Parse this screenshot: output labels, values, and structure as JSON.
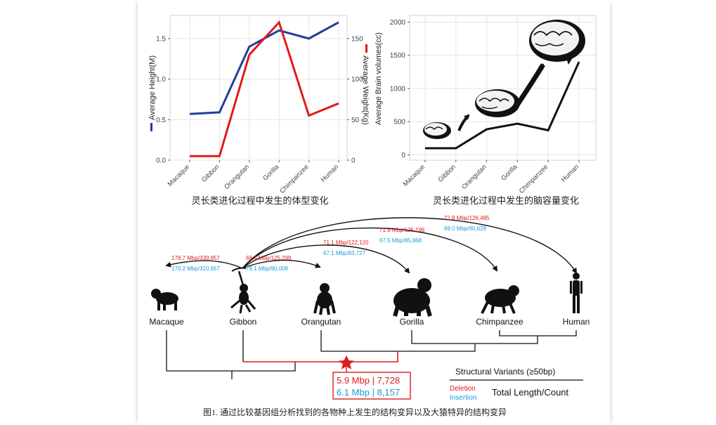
{
  "colors": {
    "height_line": "#1f3f99",
    "weight_line": "#e01b1b",
    "brain_line": "#111111",
    "deletion": "#e01b1b",
    "insertion": "#1a9ad6",
    "grid": "#e6e6e6",
    "star": "#e01b1b"
  },
  "chart_data": [
    {
      "type": "line",
      "categories": [
        "Macaque",
        "Gibbon",
        "Orangutan",
        "Gorilla",
        "Chimpanzee",
        "Human"
      ],
      "series": [
        {
          "name": "Average Height(M)",
          "axis": "left",
          "values": [
            0.57,
            0.59,
            1.4,
            1.6,
            1.5,
            1.7
          ]
        },
        {
          "name": "Average Weight(Kg)",
          "axis": "right",
          "values": [
            5,
            5,
            130,
            170,
            55,
            70
          ]
        }
      ],
      "ylabel": "Average Height(M)",
      "y2label": "Average Weight(Kg)",
      "ylim": [
        0,
        1.75
      ],
      "y2lim": [
        0,
        175
      ],
      "yticks": [
        "0.0",
        "0.5",
        "1.0",
        "1.5"
      ],
      "y2ticks": [
        "0",
        "50",
        "100",
        "150"
      ],
      "grid": true,
      "caption": "灵长类进化过程中发生的体型变化"
    },
    {
      "type": "line",
      "categories": [
        "Macaque",
        "Gibbon",
        "Orangutan",
        "Gorilla",
        "Chimpanzee",
        "Human"
      ],
      "series": [
        {
          "name": "Average Brain volumes(cc)",
          "values": [
            100,
            100,
            385,
            470,
            370,
            1400
          ]
        }
      ],
      "ylabel": "Average Brain volumes(cc)",
      "ylim": [
        -80,
        2100
      ],
      "yticks": [
        "0",
        "500",
        "1000",
        "1500",
        "2000"
      ],
      "grid": true,
      "caption": "灵长类进化过程中发生的脑容量变化"
    }
  ],
  "tree": {
    "species": [
      "Macaque",
      "Gibbon",
      "Orangutan",
      "Gorilla",
      "Chimpanzee",
      "Human"
    ],
    "arcs": [
      {
        "deletion": "178.7 Mbp/339,957",
        "insertion": "170.2 Mbp/310,957"
      },
      {
        "deletion": "68.4 Mbp/125,299",
        "insertion": "79.1 Mbp/90,008"
      },
      {
        "deletion": "71.1 Mbp/122,120",
        "insertion": "67.1 Mbp/83,727"
      },
      {
        "deletion": "71.9 Mbp/125,196",
        "insertion": "67.5 Mbp/85,868"
      },
      {
        "deletion": "72.8 Mbp/126,485",
        "insertion": "69.0 Mbp/90,628"
      }
    ],
    "box": {
      "deletion": "5.9 Mbp | 7,728",
      "insertion": "6.1 Mbp | 8,157"
    },
    "legend": {
      "title": "Structural Variants (≥50bp)",
      "deletion": "Deletion",
      "insertion": "Insertion",
      "metric": "Total Length/Count"
    },
    "caption": "图1. 通过比较基因组分析找到的各物种上发生的结构变异以及大猿特异的结构变异"
  }
}
